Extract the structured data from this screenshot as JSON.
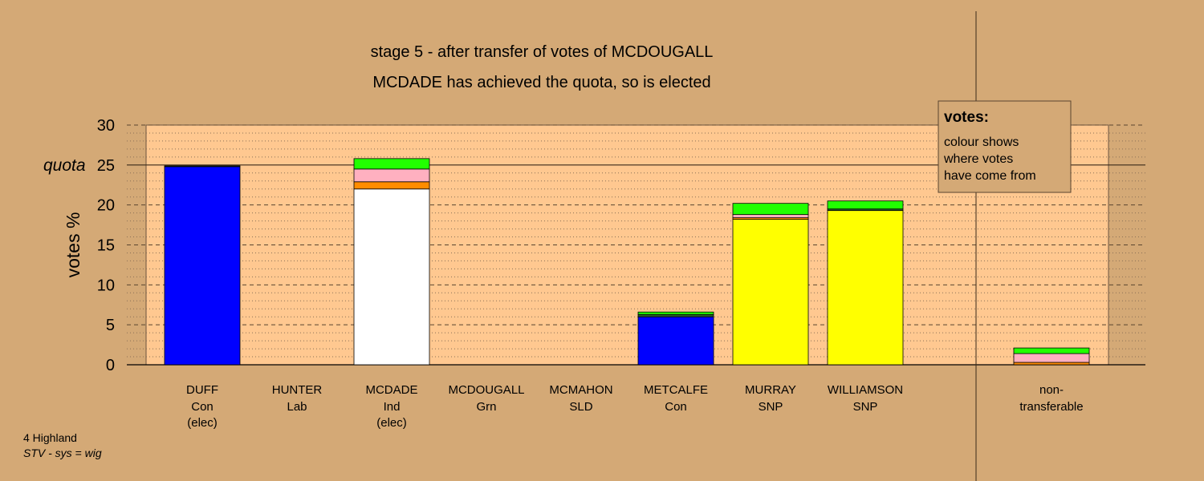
{
  "footer": {
    "region": "4 Highland",
    "system": "STV - sys = wig"
  },
  "chart_data": {
    "type": "bar",
    "stacked": true,
    "title": "stage 5 - after transfer of votes of MCDOUGALL",
    "subtitle": "MCDADE has achieved the quota, so is elected",
    "ylabel": "votes %",
    "ylim": [
      0,
      30
    ],
    "yticks": [
      0,
      5,
      10,
      15,
      20,
      25,
      30
    ],
    "quota": 25,
    "quota_label": "quota",
    "grid": true,
    "legend": {
      "title": "votes:",
      "lines": [
        "colour shows",
        "where votes",
        "have come from"
      ],
      "placement": "top-right"
    },
    "colors": {
      "Con": "#0000ff",
      "Ind": "#ffffff",
      "SNP": "#ffff00",
      "Grn": "#22ff00",
      "Lab": "#ffb0c0",
      "SLD": "#ff8c00",
      "other": "#2a5a2a"
    },
    "categories": [
      {
        "name": "DUFF",
        "party": "Con",
        "status": "(elec)",
        "segments": [
          {
            "from": "Con",
            "value": 24.8
          },
          {
            "from": "other",
            "value": 0.1
          }
        ]
      },
      {
        "name": "HUNTER",
        "party": "Lab",
        "status": "",
        "segments": []
      },
      {
        "name": "MCDADE",
        "party": "Ind",
        "status": "(elec)",
        "segments": [
          {
            "from": "Ind",
            "value": 22.0
          },
          {
            "from": "SLD",
            "value": 0.9
          },
          {
            "from": "Lab",
            "value": 1.6
          },
          {
            "from": "Grn",
            "value": 1.3
          }
        ]
      },
      {
        "name": "MCDOUGALL",
        "party": "Grn",
        "status": "",
        "segments": []
      },
      {
        "name": "MCMAHON",
        "party": "SLD",
        "status": "",
        "segments": []
      },
      {
        "name": "METCALFE",
        "party": "Con",
        "status": "",
        "segments": [
          {
            "from": "Con",
            "value": 6.0
          },
          {
            "from": "other",
            "value": 0.3
          },
          {
            "from": "Grn",
            "value": 0.3
          }
        ]
      },
      {
        "name": "MURRAY",
        "party": "SNP",
        "status": "",
        "segments": [
          {
            "from": "SNP",
            "value": 18.2
          },
          {
            "from": "SLD",
            "value": 0.2
          },
          {
            "from": "Lab",
            "value": 0.4
          },
          {
            "from": "Grn",
            "value": 1.4
          }
        ]
      },
      {
        "name": "WILLIAMSON",
        "party": "SNP",
        "status": "",
        "segments": [
          {
            "from": "SNP",
            "value": 19.3
          },
          {
            "from": "other",
            "value": 0.2
          },
          {
            "from": "Grn",
            "value": 1.0
          }
        ]
      }
    ],
    "non_transferable": {
      "label_line1": "non-",
      "label_line2": "transferable",
      "segments": [
        {
          "from": "SLD",
          "value": 0.3
        },
        {
          "from": "Lab",
          "value": 1.1
        },
        {
          "from": "Grn",
          "value": 0.7
        }
      ]
    }
  }
}
